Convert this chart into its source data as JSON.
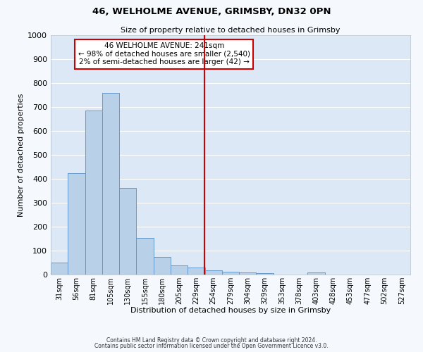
{
  "title1": "46, WELHOLME AVENUE, GRIMSBY, DN32 0PN",
  "title2": "Size of property relative to detached houses in Grimsby",
  "xlabel": "Distribution of detached houses by size in Grimsby",
  "ylabel": "Number of detached properties",
  "footer1": "Contains HM Land Registry data © Crown copyright and database right 2024.",
  "footer2": "Contains public sector information licensed under the Open Government Licence v3.0.",
  "bar_labels": [
    "31sqm",
    "56sqm",
    "81sqm",
    "105sqm",
    "130sqm",
    "155sqm",
    "180sqm",
    "205sqm",
    "229sqm",
    "254sqm",
    "279sqm",
    "304sqm",
    "329sqm",
    "353sqm",
    "378sqm",
    "403sqm",
    "428sqm",
    "453sqm",
    "477sqm",
    "502sqm",
    "527sqm"
  ],
  "bar_values": [
    50,
    425,
    685,
    758,
    362,
    153,
    75,
    38,
    28,
    18,
    13,
    8,
    5,
    0,
    0,
    8,
    0,
    0,
    0,
    0,
    0
  ],
  "bar_color": "#b8d0e8",
  "bar_edge_color": "#6699cc",
  "fig_bg_color": "#f5f8fc",
  "plot_bg_color": "#dce8f5",
  "grid_color": "#ffffff",
  "vline_color": "#cc0000",
  "annotation_title": "46 WELHOLME AVENUE: 241sqm",
  "annotation_line1": "← 98% of detached houses are smaller (2,540)",
  "annotation_line2": "2% of semi-detached houses are larger (42) →",
  "annotation_box_color": "#ffffff",
  "annotation_border_color": "#cc0000",
  "ylim": [
    0,
    1000
  ],
  "yticks": [
    0,
    100,
    200,
    300,
    400,
    500,
    600,
    700,
    800,
    900,
    1000
  ]
}
